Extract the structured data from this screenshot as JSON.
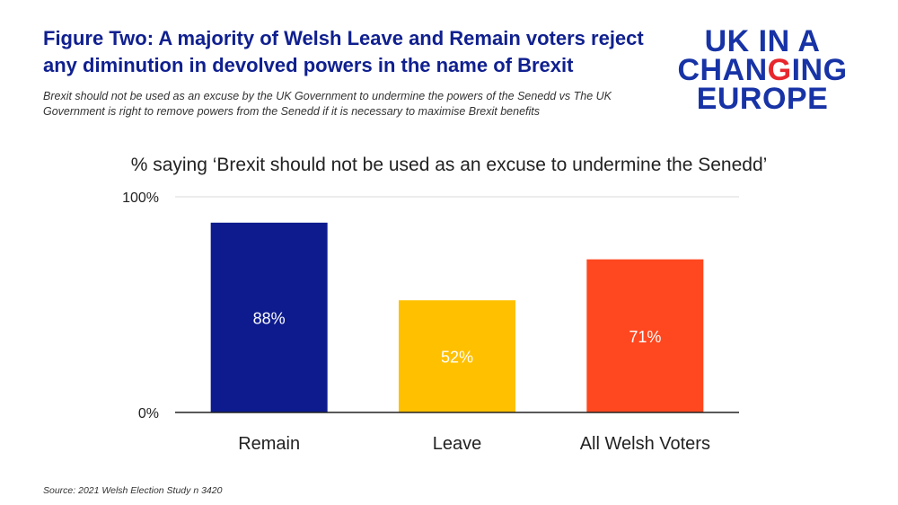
{
  "header": {
    "title": "Figure Two: A majority of Welsh Leave and Remain voters reject any diminution in devolved powers in the name of Brexit",
    "subtitle": "Brexit should not be used as an excuse by the UK Government to undermine the powers of the Senedd vs The UK Government is right to remove powers from the Senedd if it is necessary to maximise Brexit benefits"
  },
  "logo": {
    "line1": "UK IN A",
    "line2_pre": "CHAN",
    "line2_accent": "G",
    "line2_post": "ING",
    "line3": "EUROPE",
    "color": "#1733a6",
    "accent_color": "#e8262d"
  },
  "chart_data": {
    "type": "bar",
    "title": "% saying ‘Brexit should not be used as an excuse to undermine the Senedd’",
    "categories": [
      "Remain",
      "Leave",
      "All Welsh Voters"
    ],
    "values": [
      88,
      52,
      71
    ],
    "data_labels": [
      "88%",
      "52%",
      "71%"
    ],
    "colors": [
      "#0d1b8e",
      "#ffc000",
      "#ff4820"
    ],
    "label_colors": [
      "#ffffff",
      "#ffffff",
      "#ffffff"
    ],
    "ylim": [
      0,
      100
    ],
    "yticks": [
      "0%",
      "100%"
    ],
    "grid": true
  },
  "source": "Source: 2021 Welsh Election Study n 3420"
}
